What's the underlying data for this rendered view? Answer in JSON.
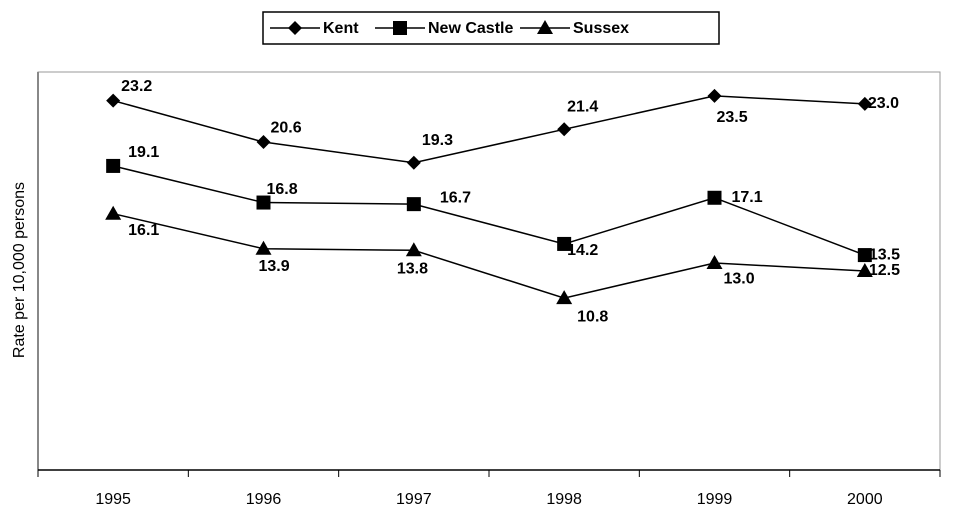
{
  "chart_data": {
    "type": "line",
    "y_label": "Rate per 10,000 persons",
    "categories": [
      "1995",
      "1996",
      "1997",
      "1998",
      "1999",
      "2000"
    ],
    "series": [
      {
        "name": "Kent",
        "color": "#000000",
        "marker": "diamond",
        "values": [
          23.2,
          20.6,
          19.3,
          21.4,
          23.5,
          23
        ],
        "value_labels": [
          "23.2",
          "20.6",
          "19.3",
          "21.4",
          "23.5",
          "23.0"
        ]
      },
      {
        "name": "New Castle",
        "color": "#000000",
        "marker": "square",
        "values": [
          19.1,
          16.8,
          16.7,
          14.2,
          17.1,
          13.5
        ],
        "value_labels": [
          "19.1",
          "16.8",
          "16.7",
          "14.2",
          "17.1",
          "13.5"
        ]
      },
      {
        "name": "Sussex",
        "color": "#000000",
        "marker": "triangle",
        "values": [
          16.1,
          13.9,
          13.8,
          10.8,
          13,
          12.5
        ],
        "value_labels": [
          "16.1",
          "13.9",
          "13.8",
          "10.8",
          "13.0",
          "12.5"
        ]
      }
    ],
    "ylim": [
      0,
      25
    ],
    "grid": false,
    "legend": "top"
  }
}
